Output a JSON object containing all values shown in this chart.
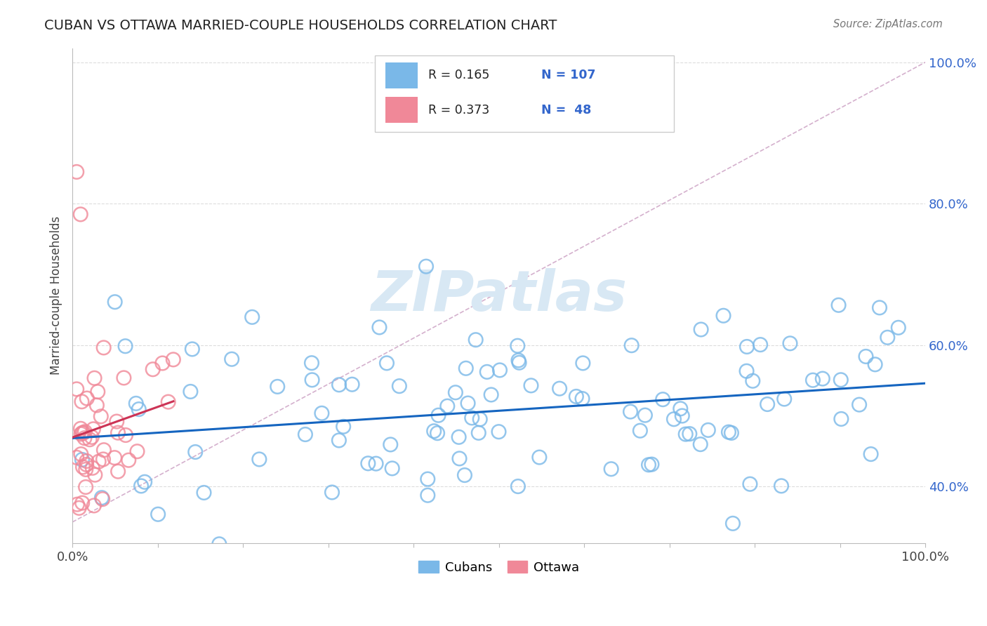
{
  "title": "CUBAN VS OTTAWA MARRIED-COUPLE HOUSEHOLDS CORRELATION CHART",
  "source_text": "Source: ZipAtlas.com",
  "ylabel": "Married-couple Households",
  "xlim": [
    0.0,
    1.0
  ],
  "ylim": [
    0.32,
    1.02
  ],
  "cubans_R": 0.165,
  "cubans_N": 107,
  "ottawa_R": 0.373,
  "ottawa_N": 48,
  "cuban_color": "#7ab8e8",
  "ottawa_color": "#f08898",
  "cuban_line_color": "#1565c0",
  "ottawa_line_color": "#cc3355",
  "ref_line_color": "#d0a8c8",
  "background_color": "#ffffff",
  "watermark_color": "#d8e8f4",
  "grid_color": "#dddddd",
  "ytick_color": "#3366cc",
  "title_color": "#222222",
  "source_color": "#777777"
}
